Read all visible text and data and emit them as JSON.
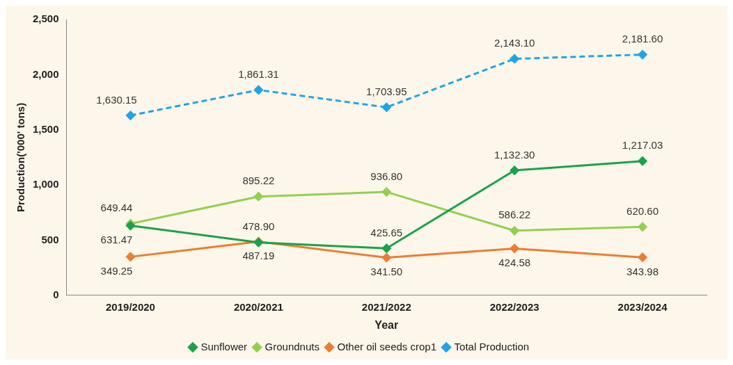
{
  "chart_data": {
    "type": "line",
    "xlabel": "Year",
    "ylabel": "Production('000' tons)",
    "categories": [
      "2019/2020",
      "2020/2021",
      "2021/2022",
      "2022/2023",
      "2023/2024"
    ],
    "series": [
      {
        "name": "Sunflower",
        "color": "#1aa24a",
        "values": [
          631.47,
          478.9,
          425.65,
          1132.3,
          1217.03
        ],
        "value_labels": [
          "631.47",
          "478.90",
          "425.65",
          "1,132.30",
          "1,217.03"
        ]
      },
      {
        "name": "Groundnuts",
        "color": "#92d050",
        "values": [
          649.44,
          895.22,
          936.8,
          586.22,
          620.6
        ],
        "value_labels": [
          "649.44",
          "895.22",
          "936.80",
          "586.22",
          "620.60"
        ]
      },
      {
        "name": "Other oil seeds crop1",
        "color": "#ed7d31",
        "values": [
          349.25,
          487.19,
          341.5,
          424.58,
          343.98
        ],
        "value_labels": [
          "349.25",
          "487.19",
          "341.50",
          "424.58",
          "343.98"
        ]
      },
      {
        "name": "Total Production",
        "color": "#21a3e8",
        "values": [
          1630.15,
          1861.31,
          1703.95,
          2143.1,
          2181.6
        ],
        "value_labels": [
          "1,630.15",
          "1,861.31",
          "1,703.95",
          "2,143.10",
          "2,181.60"
        ],
        "line_style": "dashed"
      }
    ],
    "ylim": [
      0,
      2500
    ],
    "yticks": [
      0,
      500,
      {
        "value": 1000,
        "label": "1,000"
      },
      {
        "value": 1500,
        "label": "1,500"
      },
      {
        "value": 2000,
        "label": "2,000"
      },
      {
        "value": 2500,
        "label": "2,500"
      }
    ],
    "grid": false,
    "legend": "bottom",
    "marker": "diamond"
  }
}
